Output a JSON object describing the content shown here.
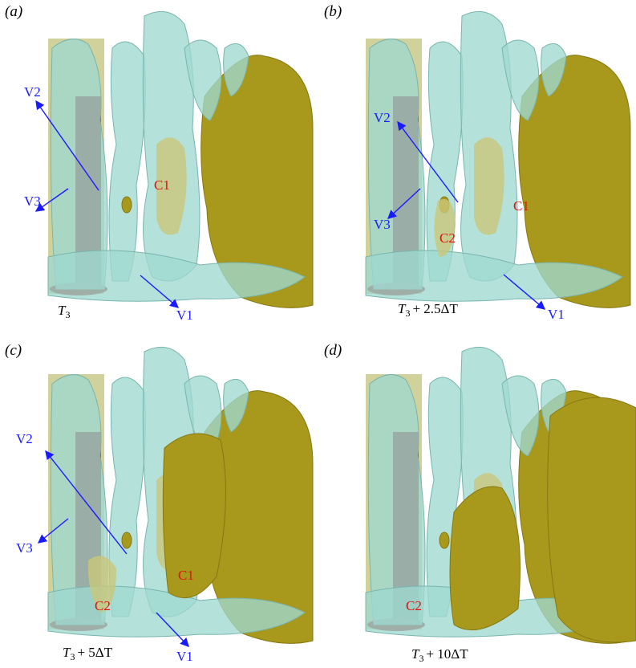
{
  "panels": [
    {
      "label": "(a)",
      "time": {
        "symbol": "T",
        "subscript": "3"
      },
      "vortices": [
        "V2",
        "V3",
        "V1"
      ],
      "cores": [
        "C1"
      ]
    },
    {
      "label": "(b)",
      "time": {
        "symbol": "T",
        "subscript": "3",
        "suffix": "+ 2.5ΔT"
      },
      "vortices": [
        "V2",
        "V3",
        "V1"
      ],
      "cores": [
        "C1",
        "C2"
      ]
    },
    {
      "label": "(c)",
      "time": {
        "symbol": "T",
        "subscript": "3",
        "suffix": "+ 5ΔT"
      },
      "vortices": [
        "V2",
        "V3",
        "V1"
      ],
      "cores": [
        "C1",
        "C2"
      ]
    },
    {
      "label": "(d)",
      "time": {
        "symbol": "T",
        "subscript": "3",
        "suffix": "+ 10ΔT"
      },
      "cores": [
        "C2"
      ]
    }
  ]
}
